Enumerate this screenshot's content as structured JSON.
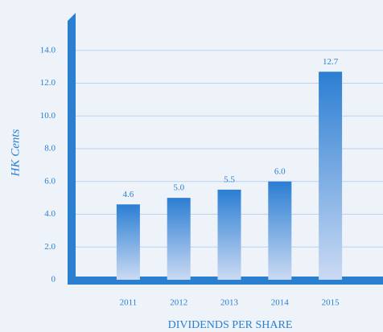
{
  "chart_data": {
    "type": "bar",
    "title": "DIVIDENDS PER SHARE",
    "y_label": "HK Cents",
    "categories": [
      "2011",
      "2012",
      "2013",
      "2014",
      "2015"
    ],
    "values": [
      4.6,
      5.0,
      5.5,
      6.0,
      12.7
    ],
    "value_labels": [
      "4.6",
      "5.0",
      "5.5",
      "6.0",
      "12.7"
    ],
    "color": "#2a7fd0",
    "ylim": [
      0,
      16
    ],
    "yticks": [
      0,
      {
        "value": 2,
        "label": "2.0"
      },
      {
        "value": 4,
        "label": "4.0"
      },
      {
        "value": 6,
        "label": "6.0"
      },
      {
        "value": 8,
        "label": "8.0"
      },
      {
        "value": 10,
        "label": "10.0"
      },
      {
        "value": 12,
        "label": "12.0"
      },
      {
        "value": 14,
        "label": "14.0"
      }
    ],
    "grid": true
  }
}
